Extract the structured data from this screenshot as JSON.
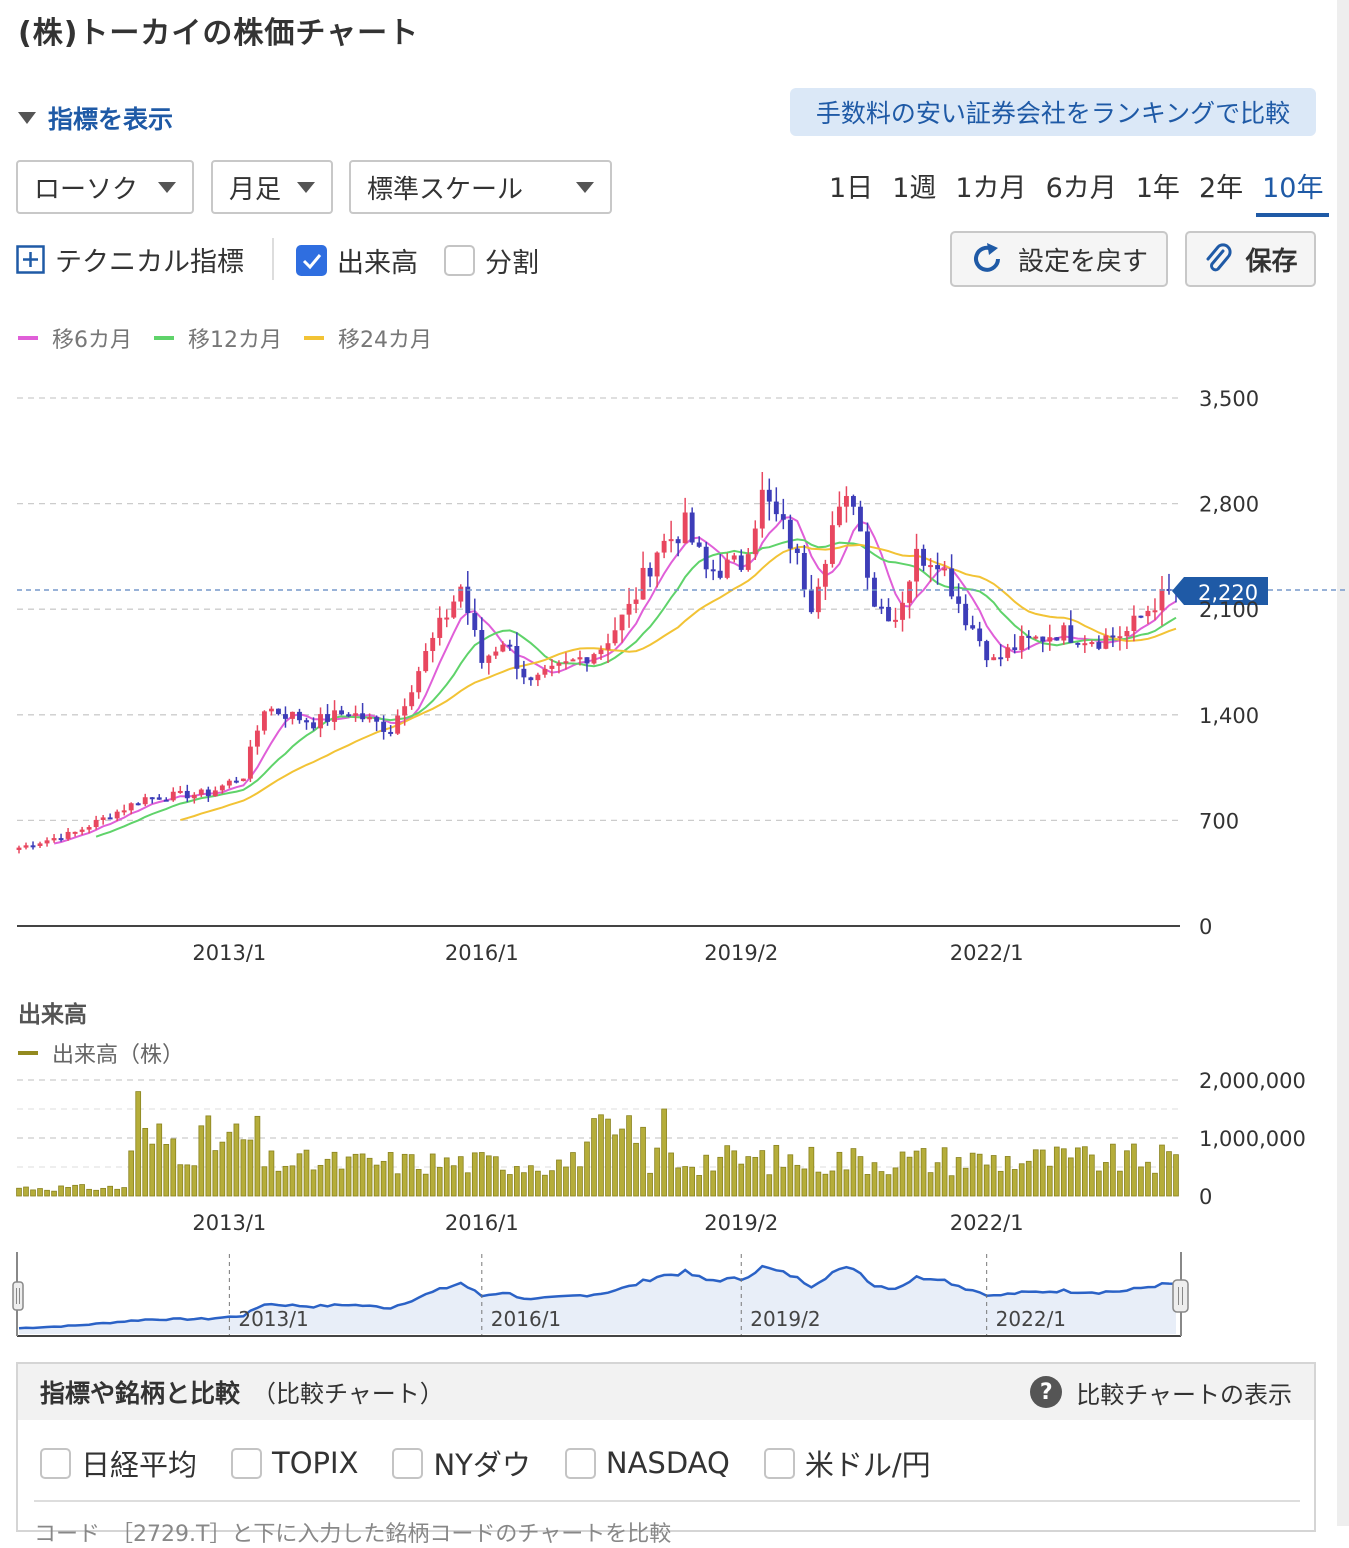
{
  "title": "(株)トーカイの株価チャート",
  "show_indicators": "指標を表示",
  "broker_link": "手数料の安い証券会社をランキングで比較",
  "selects": {
    "chart_type": "ローソク",
    "period": "月足",
    "scale": "標準スケール"
  },
  "ranges": [
    "1日",
    "1週",
    "1カ月",
    "6カ月",
    "1年",
    "2年",
    "10年"
  ],
  "active_range": "10年",
  "options": {
    "technical": "テクニカル指標",
    "volume": "出来高",
    "split": "分割"
  },
  "buttons": {
    "reset": "設定を戻す",
    "save": "保存"
  },
  "legend": [
    {
      "label": "移6カ月",
      "color": "#e05fd8"
    },
    {
      "label": "移12カ月",
      "color": "#5fd36a"
    },
    {
      "label": "移24カ月",
      "color": "#f2c335"
    }
  ],
  "current_price_label": "2,220",
  "colors": {
    "up": "#e8475f",
    "down": "#3d3db8",
    "volume": "#b5ad3a",
    "accent": "#1f5aa6"
  },
  "volume_section": {
    "title": "出来高",
    "legend": "出来高（株）"
  },
  "navigator_labels": [
    "2013/1",
    "2016/1",
    "2019/2",
    "2022/1"
  ],
  "compare": {
    "title": "指標や銘柄と比較",
    "subtitle": "（比較チャート）",
    "help": "比較チャートの表示",
    "options": [
      "日経平均",
      "TOPIX",
      "NYダウ",
      "NASDAQ",
      "米ドル/円"
    ],
    "code_hint": "コード　［2729.T］と下に入力した銘柄コードのチャートを比較"
  },
  "chart_data": [
    {
      "type": "candlestick",
      "title": "",
      "series_note": "monthly",
      "x_ticks": [
        "2013/1",
        "2016/1",
        "2019/2",
        "2022/1"
      ],
      "y_ticks": [
        "0",
        "700",
        "1,400",
        "2,100",
        "2,800",
        "3,500"
      ],
      "ylim": [
        0,
        3500
      ],
      "last_price": 2220,
      "grid": true,
      "keyframes": [
        {
          "x": "2010/7",
          "y": 520
        },
        {
          "x": "2011/3",
          "y": 620
        },
        {
          "x": "2012/1",
          "y": 850
        },
        {
          "x": "2012/10",
          "y": 880
        },
        {
          "x": "2013/3",
          "y": 1000
        },
        {
          "x": "2013/6",
          "y": 1450
        },
        {
          "x": "2014/1",
          "y": 1350
        },
        {
          "x": "2014/6",
          "y": 1420
        },
        {
          "x": "2014/12",
          "y": 1300
        },
        {
          "x": "2015/5",
          "y": 1800
        },
        {
          "x": "2015/10",
          "y": 2250
        },
        {
          "x": "2016/1",
          "y": 1750
        },
        {
          "x": "2016/4",
          "y": 1900
        },
        {
          "x": "2016/8",
          "y": 1600
        },
        {
          "x": "2017/6",
          "y": 1850
        },
        {
          "x": "2017/10",
          "y": 2100
        },
        {
          "x": "2018/2",
          "y": 2500
        },
        {
          "x": "2018/6",
          "y": 2650
        },
        {
          "x": "2018/9",
          "y": 2350
        },
        {
          "x": "2019/2",
          "y": 2400
        },
        {
          "x": "2019/5",
          "y": 2850
        },
        {
          "x": "2019/9",
          "y": 2550
        },
        {
          "x": "2019/12",
          "y": 2150
        },
        {
          "x": "2020/3",
          "y": 2650
        },
        {
          "x": "2020/6",
          "y": 2850
        },
        {
          "x": "2020/9",
          "y": 2150
        },
        {
          "x": "2020/12",
          "y": 2050
        },
        {
          "x": "2021/3",
          "y": 2450
        },
        {
          "x": "2021/6",
          "y": 2450
        },
        {
          "x": "2021/10",
          "y": 2050
        },
        {
          "x": "2022/2",
          "y": 1750
        },
        {
          "x": "2022/5",
          "y": 1850
        },
        {
          "x": "2022/11",
          "y": 1950
        },
        {
          "x": "2023/5",
          "y": 1900
        },
        {
          "x": "2023/9",
          "y": 1950
        },
        {
          "x": "2024/1",
          "y": 2150
        },
        {
          "x": "2024/4",
          "y": 2220
        }
      ],
      "moving_averages": [
        "移6カ月",
        "移12カ月",
        "移24カ月"
      ]
    },
    {
      "type": "bar",
      "title": "",
      "series": [
        {
          "name": "出来高（株）"
        }
      ],
      "x_ticks": [
        "2013/1",
        "2016/1",
        "2019/2",
        "2022/1"
      ],
      "y_ticks": [
        "0",
        "1,000,000",
        "2,000,000"
      ],
      "ylim": [
        0,
        2000000
      ]
    }
  ]
}
